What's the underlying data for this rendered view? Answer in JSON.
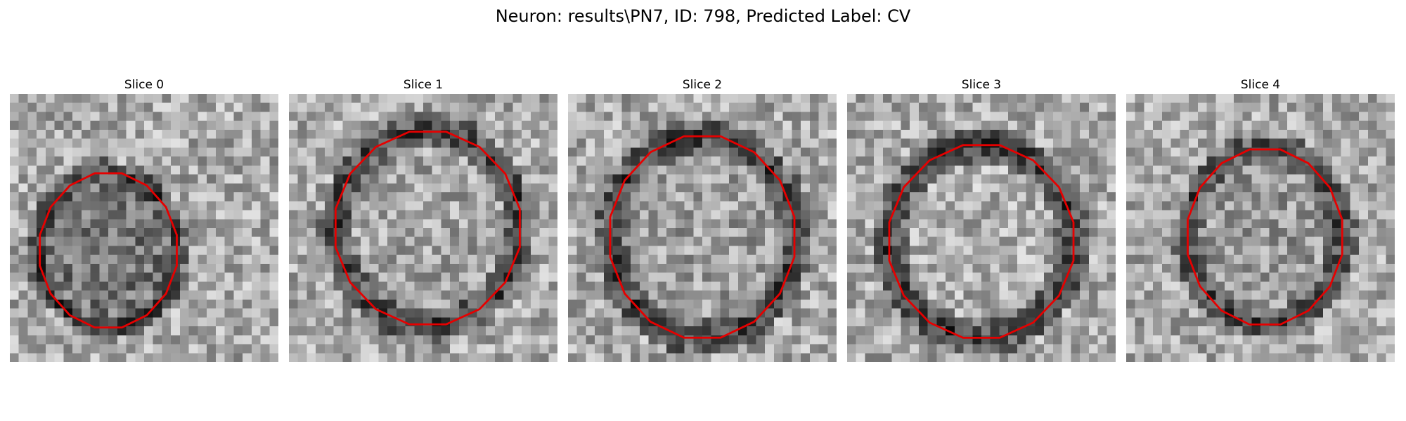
{
  "figure": {
    "title": "Neuron: results\\PN7, ID: 798, Predicted Label: CV"
  },
  "panels": [
    {
      "title": "Slice 0"
    },
    {
      "title": "Slice 1"
    },
    {
      "title": "Slice 2"
    },
    {
      "title": "Slice 3"
    },
    {
      "title": "Slice 4"
    }
  ],
  "colors": {
    "contour": "#e60000",
    "background": "#ffffff"
  }
}
